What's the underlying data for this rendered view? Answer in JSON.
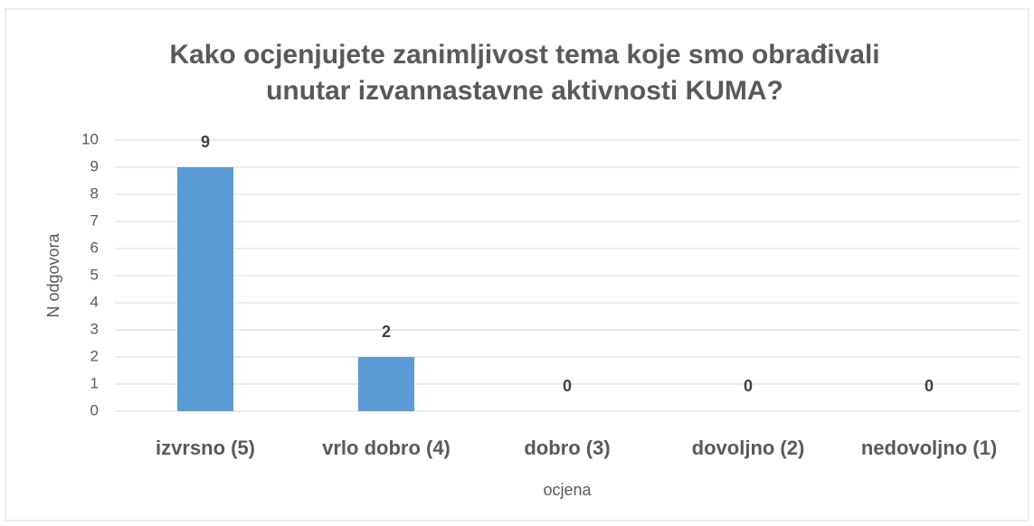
{
  "chart_data": {
    "type": "bar",
    "title": [
      "Kako ocjenjujete zanimljivost tema koje smo obrađivali",
      "unutar izvannastavne aktivnosti KUMA?"
    ],
    "x_label": "ocjena",
    "y_label": "N odgovora",
    "categories": [
      "izvrsno (5)",
      "vrlo dobro (4)",
      "dobro (3)",
      "dovoljno (2)",
      "nedovoljno (1)"
    ],
    "values": [
      9,
      2,
      0,
      0,
      0
    ],
    "color": "#5b9bd5",
    "ylim": [
      0,
      10
    ],
    "yticks": [
      0,
      1,
      2,
      3,
      4,
      5,
      6,
      7,
      8,
      9,
      10
    ],
    "grid": true
  }
}
